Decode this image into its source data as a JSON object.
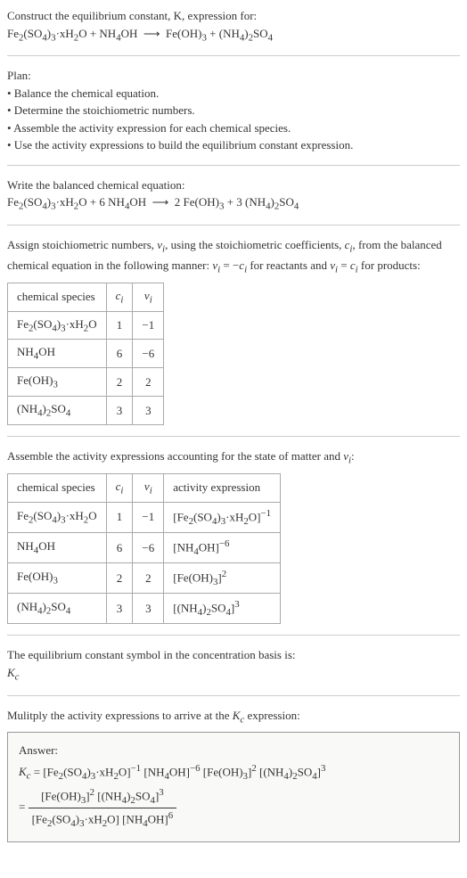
{
  "header": {
    "construct_line": "Construct the equilibrium constant, K, expression for:",
    "equation_unbalanced_html": "Fe<sub>2</sub>(SO<sub>4</sub>)<sub>3</sub>·xH<sub>2</sub>O + NH<sub>4</sub>OH &nbsp;⟶&nbsp; Fe(OH)<sub>3</sub> + (NH<sub>4</sub>)<sub>2</sub>SO<sub>4</sub>"
  },
  "plan": {
    "title": "Plan:",
    "items": [
      "• Balance the chemical equation.",
      "• Determine the stoichiometric numbers.",
      "• Assemble the activity expression for each chemical species.",
      "• Use the activity expressions to build the equilibrium constant expression."
    ]
  },
  "balanced": {
    "title": "Write the balanced chemical equation:",
    "equation_html": "Fe<sub>2</sub>(SO<sub>4</sub>)<sub>3</sub>·xH<sub>2</sub>O + 6 NH<sub>4</sub>OH &nbsp;⟶&nbsp; 2 Fe(OH)<sub>3</sub> + 3 (NH<sub>4</sub>)<sub>2</sub>SO<sub>4</sub>"
  },
  "assign": {
    "text_html": "Assign stoichiometric numbers, <i>ν<sub>i</sub></i>, using the stoichiometric coefficients, <i>c<sub>i</sub></i>, from the balanced chemical equation in the following manner: <i>ν<sub>i</sub></i> = −<i>c<sub>i</sub></i> for reactants and <i>ν<sub>i</sub></i> = <i>c<sub>i</sub></i> for products:"
  },
  "table1": {
    "headers": [
      "chemical species",
      "<i>c<sub>i</sub></i>",
      "<i>ν<sub>i</sub></i>"
    ],
    "rows": [
      [
        "Fe<sub>2</sub>(SO<sub>4</sub>)<sub>3</sub>·xH<sub>2</sub>O",
        "1",
        "−1"
      ],
      [
        "NH<sub>4</sub>OH",
        "6",
        "−6"
      ],
      [
        "Fe(OH)<sub>3</sub>",
        "2",
        "2"
      ],
      [
        "(NH<sub>4</sub>)<sub>2</sub>SO<sub>4</sub>",
        "3",
        "3"
      ]
    ]
  },
  "assemble": {
    "text_html": "Assemble the activity expressions accounting for the state of matter and <i>ν<sub>i</sub></i>:"
  },
  "table2": {
    "headers": [
      "chemical species",
      "<i>c<sub>i</sub></i>",
      "<i>ν<sub>i</sub></i>",
      "activity expression"
    ],
    "rows": [
      [
        "Fe<sub>2</sub>(SO<sub>4</sub>)<sub>3</sub>·xH<sub>2</sub>O",
        "1",
        "−1",
        "[Fe<sub>2</sub>(SO<sub>4</sub>)<sub>3</sub>·xH<sub>2</sub>O]<sup>−1</sup>"
      ],
      [
        "NH<sub>4</sub>OH",
        "6",
        "−6",
        "[NH<sub>4</sub>OH]<sup>−6</sup>"
      ],
      [
        "Fe(OH)<sub>3</sub>",
        "2",
        "2",
        "[Fe(OH)<sub>3</sub>]<sup>2</sup>"
      ],
      [
        "(NH<sub>4</sub>)<sub>2</sub>SO<sub>4</sub>",
        "3",
        "3",
        "[(NH<sub>4</sub>)<sub>2</sub>SO<sub>4</sub>]<sup>3</sup>"
      ]
    ]
  },
  "eq_const": {
    "line1": "The equilibrium constant symbol in the concentration basis is:",
    "symbol_html": "<i>K<sub>c</sub></i>"
  },
  "multiply": {
    "text_html": "Mulitply the activity expressions to arrive at the <i>K<sub>c</sub></i> expression:"
  },
  "answer": {
    "label": "Answer:",
    "line1_html": "<i>K<sub>c</sub></i> = [Fe<sub>2</sub>(SO<sub>4</sub>)<sub>3</sub>·xH<sub>2</sub>O]<sup>−1</sup> [NH<sub>4</sub>OH]<sup>−6</sup> [Fe(OH)<sub>3</sub>]<sup>2</sup> [(NH<sub>4</sub>)<sub>2</sub>SO<sub>4</sub>]<sup>3</sup>",
    "frac_num_html": "[Fe(OH)<sub>3</sub>]<sup>2</sup> [(NH<sub>4</sub>)<sub>2</sub>SO<sub>4</sub>]<sup>3</sup>",
    "frac_den_html": "[Fe<sub>2</sub>(SO<sub>4</sub>)<sub>3</sub>·xH<sub>2</sub>O] [NH<sub>4</sub>OH]<sup>6</sup>",
    "equals": "= "
  }
}
